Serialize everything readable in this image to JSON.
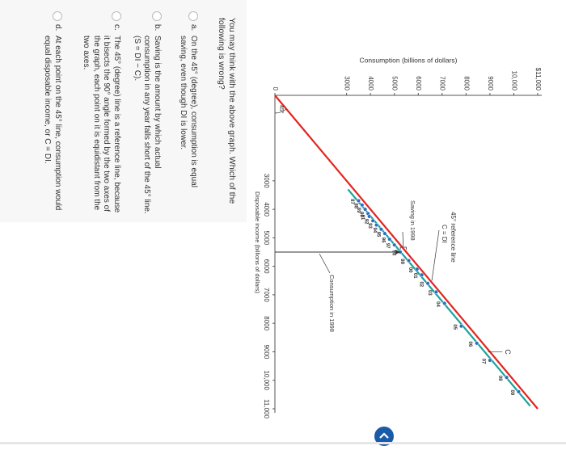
{
  "chart_data": {
    "type": "scatter",
    "ylabel": "Consumption (billions of dollars)",
    "xlabel": "Disposable income (billions of dollars)",
    "xlim": [
      0,
      11000
    ],
    "ylim": [
      0,
      11000
    ],
    "xticks": [
      3000,
      4000,
      5000,
      6000,
      7000,
      8000,
      9000,
      {
        "value": 10000,
        "label": "10,000"
      },
      {
        "value": 11000,
        "label": "11,000"
      }
    ],
    "yticks": [
      0,
      3000,
      4000,
      5000,
      6000,
      7000,
      8000,
      9000,
      {
        "value": 10000,
        "label": "10,000"
      },
      {
        "value": 11000,
        "label": "$11,000"
      }
    ],
    "series": [
      {
        "name": "C",
        "color": "#1aa39a",
        "x": [
          3700,
          3850,
          4000,
          4150,
          4250,
          4400,
          4550,
          4700,
          4850,
          5050,
          5250,
          5500,
          5800,
          6100,
          6300,
          6600,
          6900,
          7300,
          8100,
          8700,
          9300,
          9900,
          10400
        ],
        "values": [
          3500,
          3650,
          3780,
          3900,
          3950,
          4100,
          4250,
          4450,
          4600,
          4800,
          5000,
          5250,
          5600,
          5950,
          6150,
          6400,
          6750,
          7100,
          7800,
          8450,
          9000,
          9700,
          10200
        ],
        "labels": [
          "87",
          "88",
          "89",
          "90",
          "91",
          "92",
          "93",
          "94",
          "95",
          "96",
          "97",
          "98",
          "99",
          "00",
          "01",
          "02",
          "03",
          "04",
          "05",
          "06",
          "07",
          "08",
          "09"
        ]
      }
    ],
    "reference_line": {
      "label": "45° reference line",
      "equation": "C = DI",
      "color": "#e3241f",
      "angle_label": "45°"
    },
    "annotations": [
      {
        "text": "Saving in 1998",
        "point": 11
      },
      {
        "text": "Consumption in 1998",
        "point": 11
      }
    ]
  },
  "question": {
    "prompt": "You may think with the above graph. Which of the following is wrong?",
    "options": [
      {
        "letter": "a.",
        "text": "On the 45° (degree), consumption is equal saving, even though DI is lower."
      },
      {
        "letter": "b.",
        "text": "Saving is the amount by which actual consumption in any year falls short of the 45° line. (S = DI − C)."
      },
      {
        "letter": "c.",
        "text": "The 45° (degree) line is a reference line, because it bisects the 90° angle formed by the two axes of the graph, each point on it is equidistant from the two axes."
      },
      {
        "letter": "d.",
        "text": "At each point on the 45° line, consumption would equal disposable income, or C = DI."
      }
    ]
  }
}
